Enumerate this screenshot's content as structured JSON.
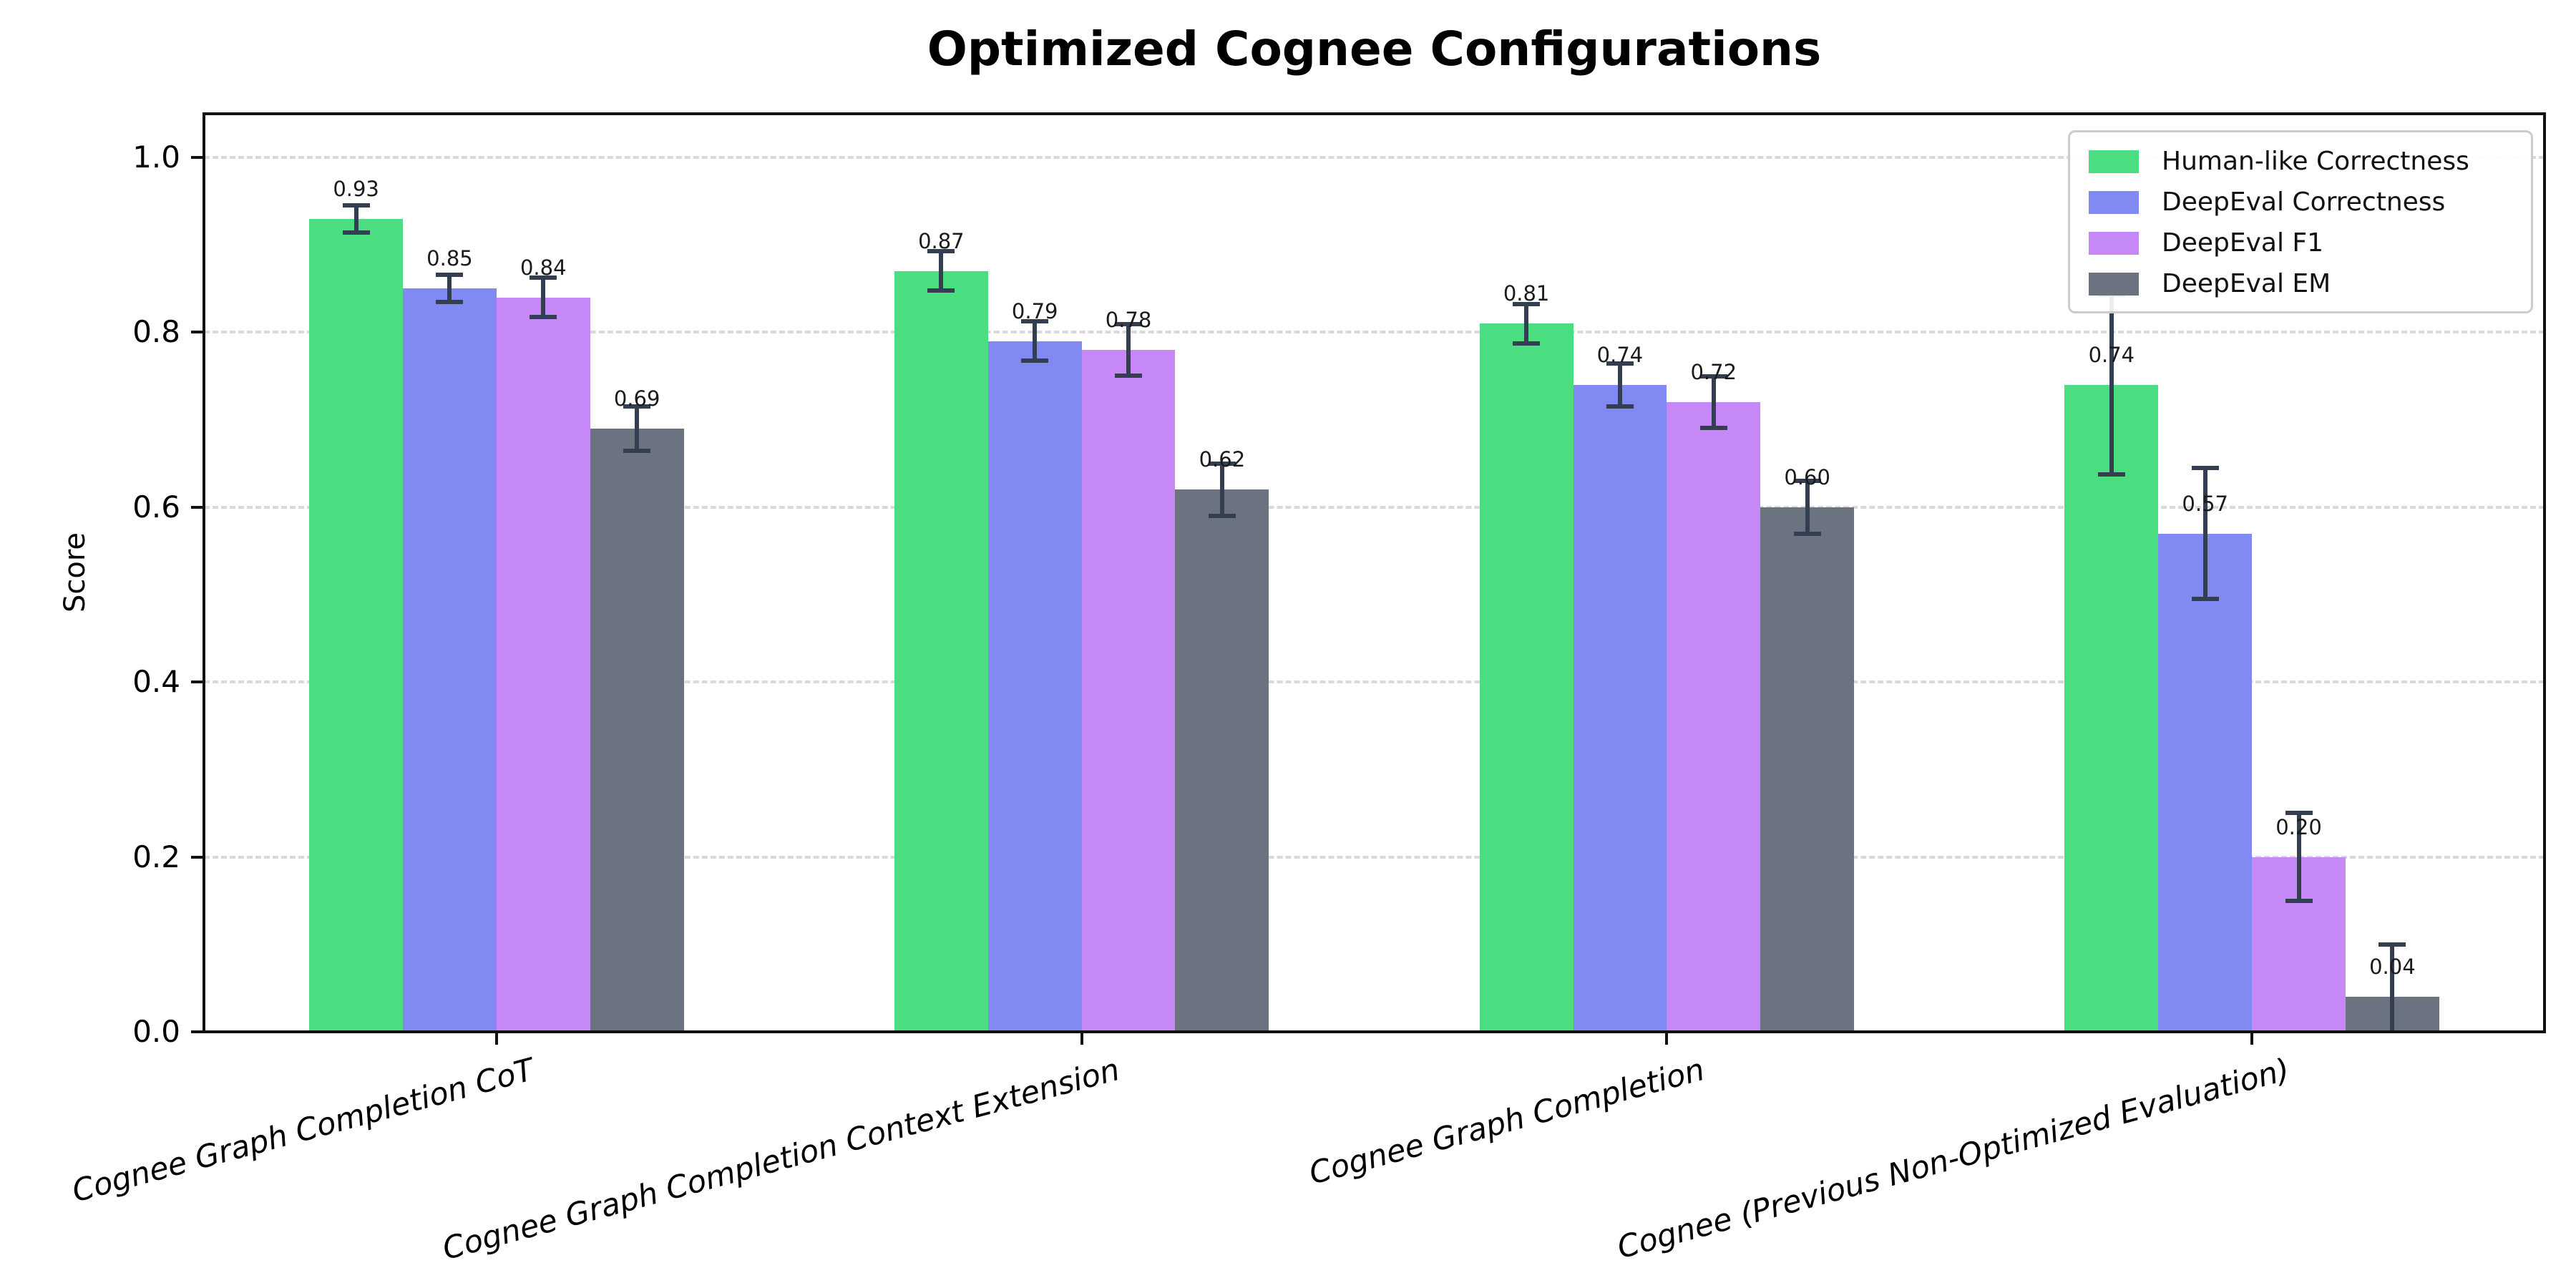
{
  "title": "Optimized Cognee Configurations",
  "chart_data": {
    "type": "bar",
    "title": "Optimized Cognee Configurations",
    "xlabel": "",
    "ylabel": "Score",
    "ylim": [
      0,
      1.05
    ],
    "yticks": [
      0.0,
      0.2,
      0.4,
      0.6,
      0.8,
      1.0
    ],
    "grid": "horizontal dashed",
    "legend_position": "upper right",
    "value_label_decimals": 2,
    "error_bar_color": "#333f50",
    "categories": [
      "Cognee Graph Completion CoT",
      "Cognee Graph Completion Context Extension",
      "Cognee Graph Completion",
      "Cognee (Previous Non-Optimized Evaluation)"
    ],
    "series": [
      {
        "name": "Human-like Correctness",
        "color": "#4ade81",
        "values": [
          0.93,
          0.87,
          0.81,
          0.74
        ],
        "errors": [
          0.018,
          0.025,
          0.025,
          0.105
        ]
      },
      {
        "name": "DeepEval Correctness",
        "color": "#8189f2",
        "values": [
          0.85,
          0.79,
          0.74,
          0.57
        ],
        "errors": [
          0.018,
          0.025,
          0.027,
          0.077
        ]
      },
      {
        "name": "DeepEval F1",
        "color": "#c687f7",
        "values": [
          0.84,
          0.78,
          0.72,
          0.2
        ],
        "errors": [
          0.025,
          0.032,
          0.032,
          0.053
        ]
      },
      {
        "name": "DeepEval EM",
        "color": "#6b7280",
        "values": [
          0.69,
          0.62,
          0.6,
          0.04
        ],
        "errors": [
          0.028,
          0.032,
          0.033,
          0.062
        ]
      }
    ]
  }
}
